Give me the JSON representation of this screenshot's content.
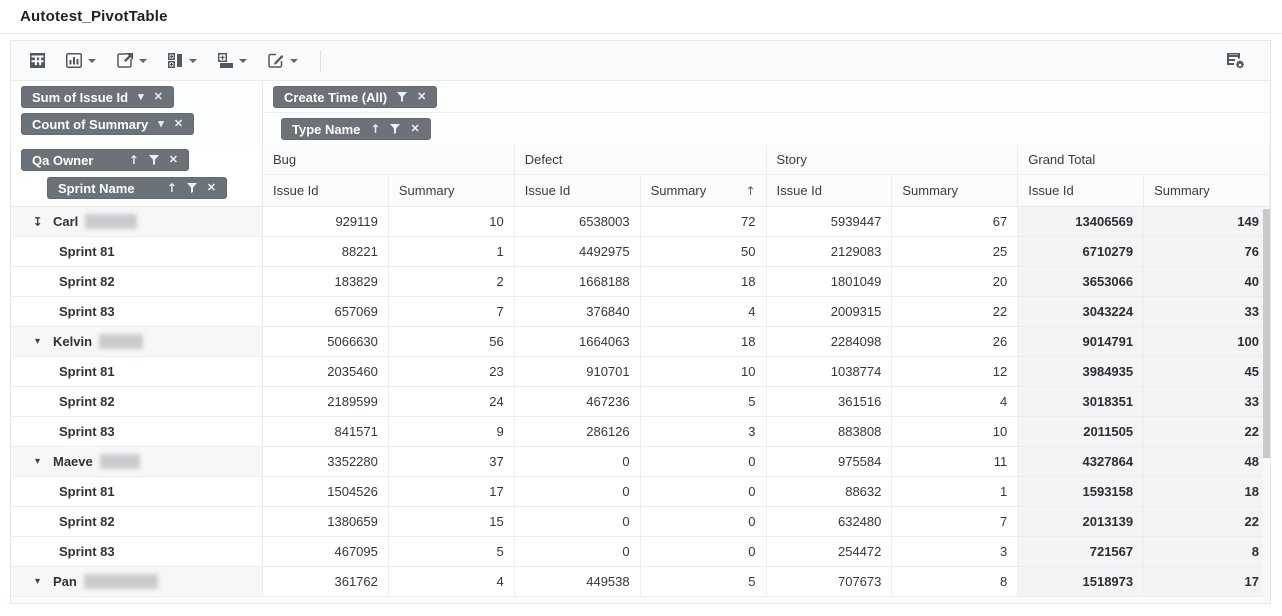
{
  "title": "Autotest_PivotTable",
  "toolbar": {
    "buttons": [
      {
        "icon": "pivot-grid-icon",
        "dropdown": false
      },
      {
        "icon": "chart-icon",
        "dropdown": true
      },
      {
        "icon": "export-icon",
        "dropdown": true
      },
      {
        "icon": "field-panel-icon",
        "dropdown": true
      },
      {
        "icon": "collapse-fields-icon",
        "dropdown": true
      },
      {
        "icon": "edit-mode-icon",
        "dropdown": true
      }
    ],
    "right_button": {
      "icon": "field-chooser-icon"
    }
  },
  "fields": {
    "data_area": [
      {
        "label": "Sum of Issue Id",
        "controls": [
          "caret-down-icon",
          "close-icon"
        ]
      },
      {
        "label": "Count of Summary",
        "controls": [
          "caret-down-icon",
          "close-icon"
        ]
      }
    ],
    "filter_area": [
      {
        "label": "Create Time (All)",
        "controls": [
          "filter-icon",
          "close-icon"
        ]
      },
      {
        "label": "Type Name",
        "controls": [
          "sort-up-icon",
          "filter-icon",
          "close-icon"
        ]
      }
    ],
    "row_area": [
      {
        "label": "Qa Owner",
        "controls": [
          "sort-up-icon",
          "filter-icon",
          "close-icon"
        ]
      },
      {
        "label": "Sprint Name",
        "controls": [
          "sort-up-icon",
          "filter-icon",
          "close-icon"
        ]
      }
    ]
  },
  "columns": {
    "groups": [
      "Bug",
      "Defect",
      "Story",
      "Grand Total"
    ],
    "subcolumns": [
      "Issue Id",
      "Summary"
    ],
    "sort_indicator": {
      "group": "Defect",
      "sub": "Summary",
      "direction": "asc",
      "glyph": "↑"
    }
  },
  "rows": [
    {
      "label": "Carl",
      "type": "group",
      "expander": "arrow-down-from-bar",
      "redacted_width": 52,
      "values": [
        929119,
        10,
        6538003,
        72,
        5939447,
        67,
        13406569,
        149
      ]
    },
    {
      "label": "Sprint 81",
      "type": "child",
      "values": [
        88221,
        1,
        4492975,
        50,
        2129083,
        25,
        6710279,
        76
      ]
    },
    {
      "label": "Sprint 82",
      "type": "child",
      "values": [
        183829,
        2,
        1668188,
        18,
        1801049,
        20,
        3653066,
        40
      ]
    },
    {
      "label": "Sprint 83",
      "type": "child",
      "values": [
        657069,
        7,
        376840,
        4,
        2009315,
        22,
        3043224,
        33
      ]
    },
    {
      "label": "Kelvin",
      "type": "group",
      "expander": "caret-down",
      "redacted_width": 44,
      "values": [
        5066630,
        56,
        1664063,
        18,
        2284098,
        26,
        9014791,
        100
      ]
    },
    {
      "label": "Sprint 81",
      "type": "child",
      "values": [
        2035460,
        23,
        910701,
        10,
        1038774,
        12,
        3984935,
        45
      ]
    },
    {
      "label": "Sprint 82",
      "type": "child",
      "values": [
        2189599,
        24,
        467236,
        5,
        361516,
        4,
        3018351,
        33
      ]
    },
    {
      "label": "Sprint 83",
      "type": "child",
      "values": [
        841571,
        9,
        286126,
        3,
        883808,
        10,
        2011505,
        22
      ]
    },
    {
      "label": "Maeve",
      "type": "group",
      "expander": "caret-down",
      "redacted_width": 40,
      "values": [
        3352280,
        37,
        0,
        0,
        975584,
        11,
        4327864,
        48
      ]
    },
    {
      "label": "Sprint 81",
      "type": "child",
      "values": [
        1504526,
        17,
        0,
        0,
        88632,
        1,
        1593158,
        18
      ]
    },
    {
      "label": "Sprint 82",
      "type": "child",
      "values": [
        1380659,
        15,
        0,
        0,
        632480,
        7,
        2013139,
        22
      ]
    },
    {
      "label": "Sprint 83",
      "type": "child",
      "values": [
        467095,
        5,
        0,
        0,
        254472,
        3,
        721567,
        8
      ]
    },
    {
      "label": "Pan",
      "type": "group",
      "expander": "caret-down",
      "redacted_width": 74,
      "values": [
        361762,
        4,
        449538,
        5,
        707673,
        8,
        1518973,
        17
      ]
    }
  ]
}
